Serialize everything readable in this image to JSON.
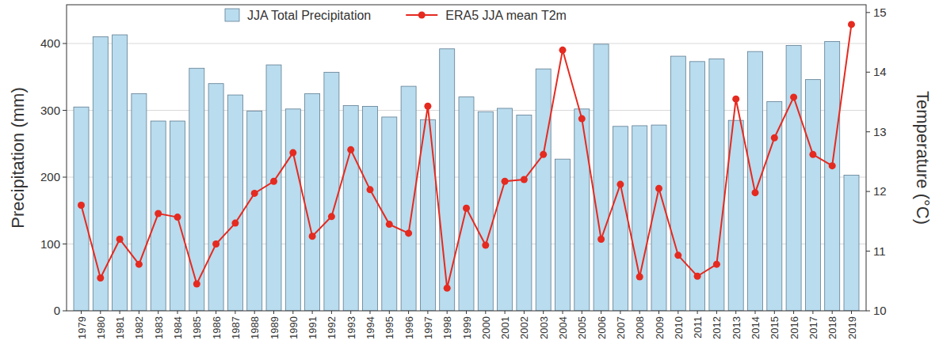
{
  "chart_data": {
    "type": "bar",
    "categories": [
      "1979",
      "1980",
      "1981",
      "1982",
      "1983",
      "1984",
      "1985",
      "1986",
      "1987",
      "1988",
      "1989",
      "1990",
      "1991",
      "1992",
      "1993",
      "1994",
      "1995",
      "1996",
      "1997",
      "1998",
      "1999",
      "2000",
      "2001",
      "2002",
      "2003",
      "2004",
      "2005",
      "2006",
      "2007",
      "2008",
      "2009",
      "2010",
      "2011",
      "2012",
      "2013",
      "2014",
      "2015",
      "2016",
      "2017",
      "2018",
      "2019"
    ],
    "y_label": "Precipitation (mm)",
    "y2_label": "Temperature (°C)",
    "ylim": [
      0,
      458
    ],
    "yticks": [
      0,
      100,
      200,
      300,
      400
    ],
    "y2lim": [
      10,
      15.13
    ],
    "y2ticks": [
      10,
      11,
      12,
      13,
      14,
      15
    ],
    "grid": true,
    "legend": "top",
    "series": [
      {
        "name": "JJA Total Precipitation",
        "type": "bar",
        "color": "#b9dcee",
        "values": [
          305,
          410,
          413,
          325,
          284,
          284,
          363,
          340,
          323,
          299,
          368,
          302,
          325,
          357,
          307,
          306,
          290,
          336,
          286,
          392,
          320,
          298,
          303,
          293,
          362,
          227,
          302,
          399,
          276,
          277,
          278,
          381,
          373,
          377,
          285,
          388,
          313,
          397,
          346,
          403,
          203
        ]
      },
      {
        "name": "ERA5 JJA mean T2m",
        "type": "line",
        "color": "#e52a20",
        "marker": "circle",
        "axis": "y2",
        "values": [
          11.77,
          10.55,
          11.2,
          10.78,
          11.63,
          11.57,
          10.45,
          11.12,
          11.47,
          11.97,
          12.17,
          12.65,
          11.25,
          11.58,
          12.7,
          12.03,
          11.45,
          11.3,
          13.43,
          10.38,
          11.72,
          11.1,
          12.17,
          12.2,
          12.62,
          14.37,
          13.22,
          11.2,
          12.12,
          10.57,
          12.05,
          10.93,
          10.58,
          10.78,
          13.55,
          11.98,
          12.9,
          13.58,
          12.62,
          12.43,
          14.8
        ]
      }
    ]
  }
}
